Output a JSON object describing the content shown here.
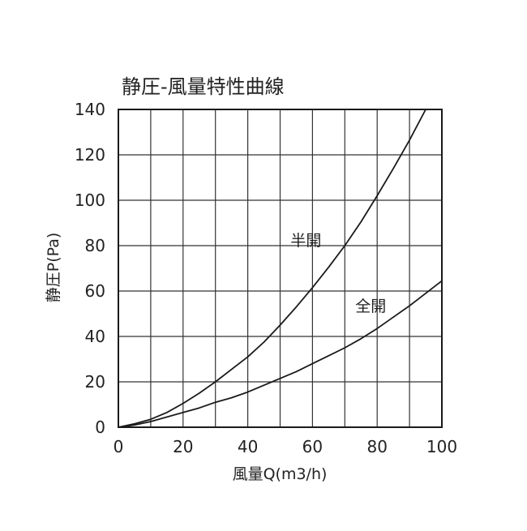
{
  "chart_data": {
    "type": "line",
    "title": "静圧-風量特性曲線",
    "xlabel": "風量Q(m3/h)",
    "ylabel": "静圧P(Pa)",
    "xlim": [
      0,
      100
    ],
    "ylim": [
      0,
      140
    ],
    "x_ticks": [
      0,
      20,
      40,
      60,
      80,
      100
    ],
    "y_ticks": [
      0,
      20,
      40,
      60,
      80,
      100,
      120,
      140
    ],
    "grid": true,
    "x_grid_step": 10,
    "y_grid_step": 20,
    "legend": "inline labels",
    "series": [
      {
        "name": "半開",
        "color": "#1a1a1a",
        "points": [
          [
            0,
            0
          ],
          [
            5,
            1.5
          ],
          [
            10,
            3.5
          ],
          [
            15,
            6.5
          ],
          [
            20,
            10.5
          ],
          [
            25,
            15
          ],
          [
            30,
            20
          ],
          [
            35,
            25.5
          ],
          [
            40,
            31
          ],
          [
            45,
            37.5
          ],
          [
            50,
            45
          ],
          [
            55,
            53
          ],
          [
            60,
            61.5
          ],
          [
            65,
            70.5
          ],
          [
            70,
            80
          ],
          [
            75,
            90.5
          ],
          [
            80,
            102
          ],
          [
            85,
            114
          ],
          [
            90,
            126.5
          ],
          [
            95,
            140
          ]
        ]
      },
      {
        "name": "全開",
        "color": "#1a1a1a",
        "points": [
          [
            0,
            0
          ],
          [
            5,
            1
          ],
          [
            10,
            2.5
          ],
          [
            15,
            4.5
          ],
          [
            20,
            6.5
          ],
          [
            25,
            8.5
          ],
          [
            30,
            11
          ],
          [
            35,
            13
          ],
          [
            40,
            15.5
          ],
          [
            45,
            18.5
          ],
          [
            50,
            21.5
          ],
          [
            55,
            24.5
          ],
          [
            60,
            28
          ],
          [
            65,
            31.5
          ],
          [
            70,
            35
          ],
          [
            75,
            39
          ],
          [
            80,
            43.5
          ],
          [
            85,
            48.5
          ],
          [
            90,
            53.5
          ],
          [
            95,
            59
          ],
          [
            100,
            64.5
          ]
        ]
      }
    ]
  }
}
